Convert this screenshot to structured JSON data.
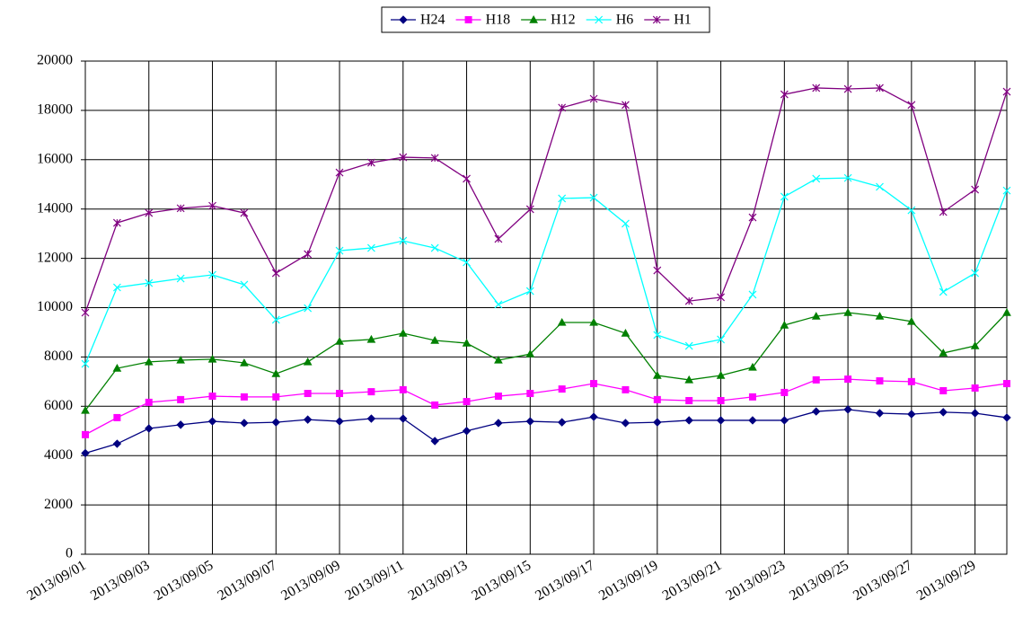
{
  "chart_data": {
    "type": "line",
    "categories": [
      "2013/09/01",
      null,
      "2013/09/03",
      null,
      "2013/09/05",
      null,
      "2013/09/07",
      null,
      "2013/09/09",
      null,
      "2013/09/11",
      null,
      "2013/09/13",
      null,
      "2013/09/15",
      null,
      "2013/09/17",
      null,
      "2013/09/19",
      null,
      "2013/09/21",
      null,
      "2013/09/23",
      null,
      "2013/09/25",
      null,
      "2013/09/27",
      null,
      "2013/09/29",
      null
    ],
    "ylim": [
      0,
      20000
    ],
    "yticks": [
      0,
      2000,
      4000,
      6000,
      8000,
      10000,
      12000,
      14000,
      16000,
      18000,
      20000
    ],
    "grid": true,
    "legend": "top",
    "series": [
      {
        "name": "H24",
        "color": "#000080",
        "marker": "diamond",
        "values": [
          4100,
          4480,
          5100,
          5250,
          5390,
          5320,
          5350,
          5460,
          5390,
          5500,
          5500,
          4590,
          5000,
          5320,
          5390,
          5350,
          5570,
          5320,
          5350,
          5430,
          5430,
          5430,
          5430,
          5790,
          5870,
          5720,
          5680,
          5760,
          5720,
          5540
        ]
      },
      {
        "name": "H18",
        "color": "#ff00ff",
        "marker": "square",
        "values": [
          4850,
          5540,
          6160,
          6270,
          6410,
          6380,
          6380,
          6520,
          6520,
          6590,
          6670,
          6050,
          6190,
          6410,
          6520,
          6700,
          6920,
          6670,
          6270,
          6230,
          6230,
          6380,
          6560,
          7070,
          7100,
          7030,
          7000,
          6630,
          6740,
          6920
        ]
      },
      {
        "name": "H12",
        "color": "#008000",
        "marker": "triangle",
        "values": [
          5830,
          7540,
          7800,
          7870,
          7910,
          7760,
          7320,
          7800,
          8630,
          8710,
          8960,
          8670,
          8560,
          7870,
          8120,
          9400,
          9400,
          8960,
          7250,
          7070,
          7250,
          7580,
          9290,
          9650,
          9800,
          9650,
          9440,
          8160,
          8450,
          9800
        ]
      },
      {
        "name": "H6",
        "color": "#00ffff",
        "marker": "x",
        "values": [
          7720,
          10820,
          11000,
          11180,
          11330,
          10930,
          9510,
          9980,
          12310,
          12420,
          12710,
          12420,
          11840,
          10130,
          10670,
          14430,
          14460,
          13410,
          8890,
          8450,
          8710,
          10530,
          14500,
          15230,
          15260,
          14900,
          13950,
          10640,
          11400,
          14750
        ]
      },
      {
        "name": "H1",
        "color": "#800080",
        "marker": "star",
        "values": [
          9800,
          13440,
          13840,
          14030,
          14130,
          13840,
          11400,
          12170,
          15480,
          15880,
          16100,
          16070,
          15230,
          12790,
          13990,
          18110,
          18470,
          18220,
          11510,
          10270,
          10420,
          13660,
          18650,
          18910,
          18870,
          18910,
          18220,
          13880,
          14790,
          18760
        ]
      }
    ]
  }
}
